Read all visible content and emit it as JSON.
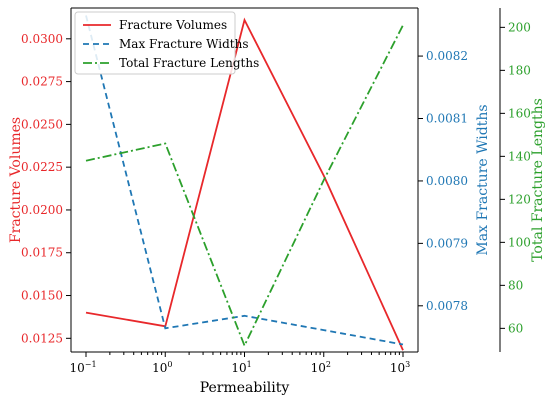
{
  "chart_data": {
    "type": "line",
    "xlabel": "Permeability",
    "x": [
      0.1,
      1,
      10,
      100,
      1000
    ],
    "x_scale": "log",
    "xlim": [
      0.1,
      1000
    ],
    "x_ticks": [
      {
        "base": "10",
        "exp": "−1",
        "value": 0.1
      },
      {
        "base": "10",
        "exp": "0",
        "value": 1
      },
      {
        "base": "10",
        "exp": "1",
        "value": 10
      },
      {
        "base": "10",
        "exp": "2",
        "value": 100
      },
      {
        "base": "10",
        "exp": "3",
        "value": 1000
      }
    ],
    "axes": [
      {
        "id": "y1",
        "label": "Fracture Volumes",
        "color": "#e8282b",
        "position": "left",
        "ylim": [
          0.0117,
          0.0318
        ],
        "ticks": [
          "0.0125",
          "0.0150",
          "0.0175",
          "0.0200",
          "0.0225",
          "0.0250",
          "0.0275",
          "0.0300"
        ],
        "tick_values": [
          0.0125,
          0.015,
          0.0175,
          0.02,
          0.0225,
          0.025,
          0.0275,
          0.03
        ]
      },
      {
        "id": "y2",
        "label": "Max Fracture Widths",
        "color": "#1f77b4",
        "position": "right-inner",
        "ylim": [
          0.007726,
          0.008277
        ],
        "ticks": [
          "0.0078",
          "0.0079",
          "0.0080",
          "0.0081",
          "0.0082"
        ],
        "tick_values": [
          0.0078,
          0.0079,
          0.008,
          0.0081,
          0.0082
        ]
      },
      {
        "id": "y3",
        "label": "Total Fracture Lengths",
        "color": "#2ca02c",
        "position": "right-outer",
        "ylim": [
          49,
          209
        ],
        "ticks": [
          "60",
          "80",
          "100",
          "120",
          "140",
          "160",
          "180",
          "200"
        ],
        "tick_values": [
          60,
          80,
          100,
          120,
          140,
          160,
          180,
          200
        ]
      }
    ],
    "series": [
      {
        "name": "Fracture Volumes",
        "axis": "y1",
        "values": [
          0.014,
          0.0132,
          0.0311,
          0.022,
          0.0118
        ],
        "color": "#e8282b",
        "dash": "solid"
      },
      {
        "name": "Max Fracture Widths",
        "axis": "y2",
        "values": [
          0.008265,
          0.007764,
          0.007784,
          0.007761,
          0.007738
        ],
        "color": "#1f77b4",
        "dash": "dashed"
      },
      {
        "name": "Total Fracture Lengths",
        "axis": "y3",
        "values": [
          138,
          146,
          52,
          129,
          201
        ],
        "color": "#2ca02c",
        "dash": "dashdot"
      }
    ],
    "legend": "top-left",
    "grid": false
  }
}
